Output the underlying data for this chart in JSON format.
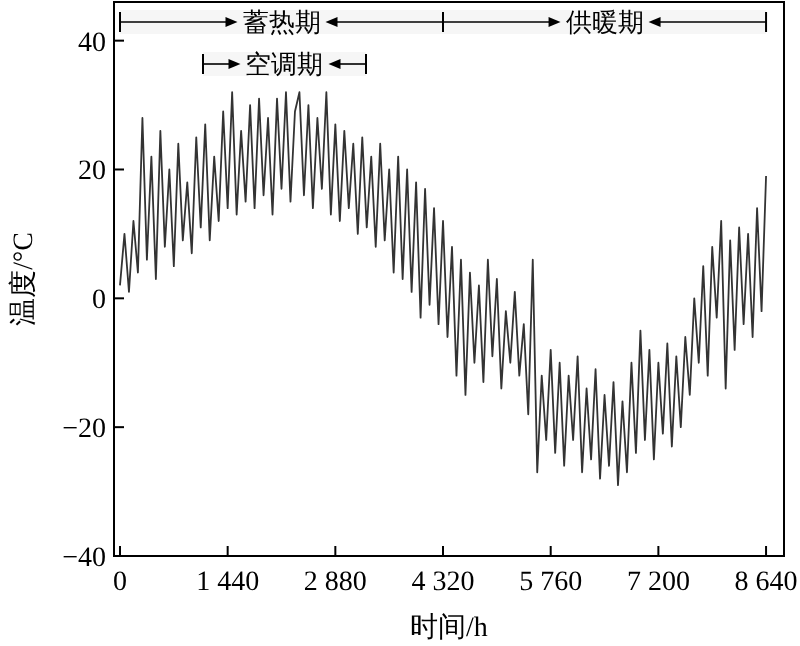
{
  "chart_data": {
    "type": "line",
    "xlabel": "时间/h",
    "ylabel": "温度/°C",
    "xlim": [
      -80,
      8880
    ],
    "ylim": [
      -40,
      46
    ],
    "xticks": [
      0,
      {
        "value": 1440,
        "label": "1 440"
      },
      {
        "value": 2880,
        "label": "2 880"
      },
      {
        "value": 4320,
        "label": "4 320"
      },
      {
        "value": 5760,
        "label": "5 760"
      },
      {
        "value": 7200,
        "label": "7 200"
      },
      {
        "value": 8640,
        "label": "8 640"
      }
    ],
    "yticks": [
      {
        "value": -40,
        "label": "−40"
      },
      {
        "value": -20,
        "label": "−20"
      },
      0,
      20,
      40
    ],
    "bands": [
      {
        "axis": "x",
        "from": 0,
        "to": 4320,
        "label": "蓄热期"
      },
      {
        "axis": "x",
        "from": 4320,
        "to": 8640,
        "label": "供暖期"
      },
      {
        "axis": "x",
        "from": 1110,
        "to": 3290,
        "label": "空调期"
      }
    ],
    "series": [
      {
        "color": "#333333",
        "x": [
          0,
          60,
          120,
          180,
          240,
          300,
          360,
          420,
          480,
          540,
          600,
          660,
          720,
          780,
          840,
          900,
          960,
          1020,
          1080,
          1140,
          1200,
          1260,
          1320,
          1380,
          1440,
          1500,
          1560,
          1620,
          1680,
          1740,
          1800,
          1860,
          1920,
          1980,
          2040,
          2100,
          2160,
          2220,
          2280,
          2340,
          2400,
          2460,
          2520,
          2580,
          2640,
          2700,
          2760,
          2820,
          2880,
          2940,
          3000,
          3060,
          3120,
          3180,
          3240,
          3300,
          3360,
          3420,
          3480,
          3540,
          3600,
          3660,
          3720,
          3780,
          3840,
          3900,
          3960,
          4020,
          4080,
          4140,
          4200,
          4260,
          4320,
          4380,
          4440,
          4500,
          4560,
          4620,
          4680,
          4740,
          4800,
          4860,
          4920,
          4980,
          5040,
          5100,
          5160,
          5220,
          5280,
          5340,
          5400,
          5460,
          5520,
          5580,
          5640,
          5700,
          5760,
          5820,
          5880,
          5940,
          6000,
          6060,
          6120,
          6180,
          6240,
          6300,
          6360,
          6420,
          6480,
          6540,
          6600,
          6660,
          6720,
          6780,
          6840,
          6900,
          6960,
          7020,
          7080,
          7140,
          7200,
          7260,
          7320,
          7380,
          7440,
          7500,
          7560,
          7620,
          7680,
          7740,
          7800,
          7860,
          7920,
          7980,
          8040,
          8100,
          8160,
          8220,
          8280,
          8340,
          8400,
          8460,
          8520,
          8580,
          8640
        ],
        "values": [
          2,
          10,
          1,
          12,
          4,
          28,
          6,
          22,
          3,
          26,
          8,
          20,
          5,
          24,
          9,
          18,
          7,
          25,
          11,
          27,
          9,
          22,
          12,
          29,
          14,
          32,
          13,
          26,
          15,
          30,
          14,
          31,
          16,
          28,
          13,
          31,
          17,
          32,
          15,
          29,
          32,
          16,
          30,
          14,
          28,
          17,
          32,
          13,
          27,
          12,
          26,
          14,
          24,
          10,
          25,
          11,
          22,
          8,
          24,
          9,
          20,
          4,
          22,
          3,
          20,
          1,
          18,
          -3,
          17,
          -1,
          14,
          -4,
          12,
          -6,
          8,
          -12,
          6,
          -15,
          4,
          -10,
          2,
          -13,
          6,
          -9,
          3,
          -14,
          -2,
          -10,
          1,
          -12,
          -4,
          -18,
          6,
          -27,
          -12,
          -22,
          -8,
          -24,
          -10,
          -26,
          -12,
          -22,
          -9,
          -27,
          -14,
          -25,
          -11,
          -28,
          -15,
          -26,
          -13,
          -29,
          -16,
          -27,
          -10,
          -24,
          -5,
          -22,
          -8,
          -25,
          -10,
          -21,
          -7,
          -23,
          -9,
          -20,
          -6,
          -15,
          0,
          -10,
          5,
          -12,
          8,
          -3,
          12,
          -14,
          9,
          -8,
          11,
          -4,
          10,
          -6,
          14,
          -2,
          19
        ]
      }
    ]
  }
}
